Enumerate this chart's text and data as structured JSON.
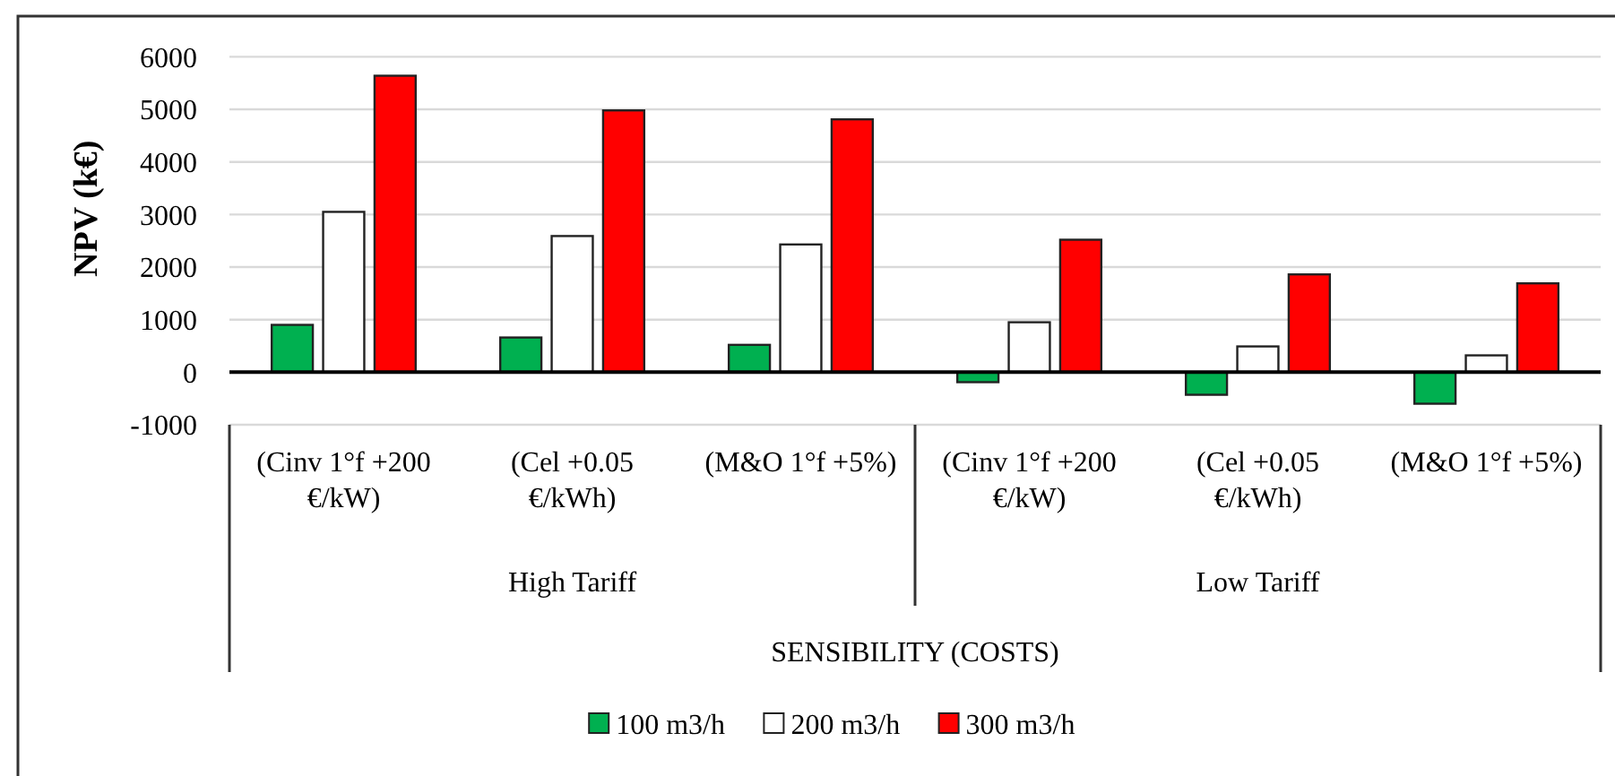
{
  "chart_data": {
    "type": "bar",
    "ylabel": "NPV (k€)",
    "xlabel": "SENSIBILITY (COSTS)",
    "categories": [
      "(Cinv 1°f +200 €/kW)",
      "(Cel +0.05 €/kWh)",
      "(M&O 1°f +5%)",
      "(Cinv 1°f +200 €/kW)",
      "(Cel +0.05 €/kWh)",
      "(M&O 1°f +5%)"
    ],
    "annotations": [
      "High Tariff",
      "Low Tariff"
    ],
    "series": [
      {
        "name": "100 m3/h",
        "color": "#00b050",
        "values": [
          900,
          660,
          520,
          -190,
          -430,
          -600
        ]
      },
      {
        "name": "200 m3/h",
        "color": "#ffffff",
        "values": [
          3050,
          2590,
          2430,
          950,
          490,
          320
        ]
      },
      {
        "name": "300 m3/h",
        "color": "#ff0000",
        "values": [
          5640,
          4980,
          4810,
          2520,
          1860,
          1690
        ]
      }
    ],
    "ylim": [
      -1000,
      6000
    ],
    "yticks": [
      -1000,
      0,
      1000,
      2000,
      3000,
      4000,
      5000,
      6000
    ],
    "grid": "y",
    "legend": "bottom"
  }
}
